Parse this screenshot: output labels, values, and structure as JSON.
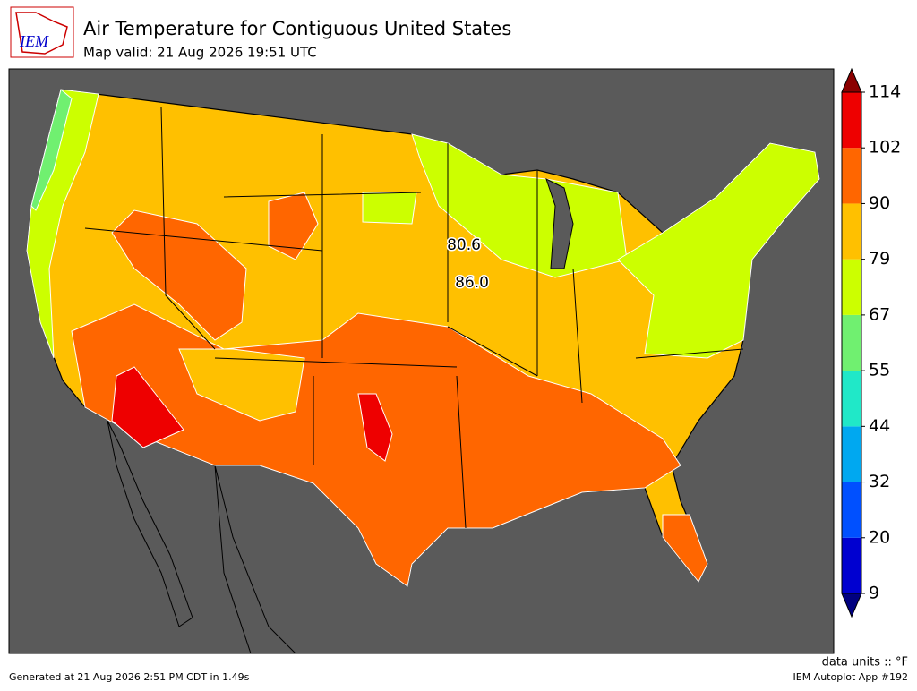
{
  "header": {
    "logo": "IEM",
    "title": "Air Temperature for Contiguous United States",
    "subtitle": "Map valid: 21 Aug 2026 19:51 UTC"
  },
  "colorbar": {
    "levels": [
      9,
      20,
      32,
      44,
      55,
      67,
      79,
      90,
      102,
      114
    ],
    "colors": [
      "#0000d0",
      "#0050ff",
      "#00a8f0",
      "#20e8c8",
      "#70f070",
      "#ccff00",
      "#ffc000",
      "#ff6600",
      "#ee0000"
    ],
    "under_color": "#000080",
    "over_color": "#8b0000"
  },
  "stations": [
    {
      "label": "80.6"
    },
    {
      "label": "86.0"
    }
  ],
  "footer": {
    "generated": "Generated at 21 Aug 2026 2:51 PM CDT in 1.49s",
    "units": "data units :: °F",
    "app": "IEM Autoplot App #192"
  }
}
